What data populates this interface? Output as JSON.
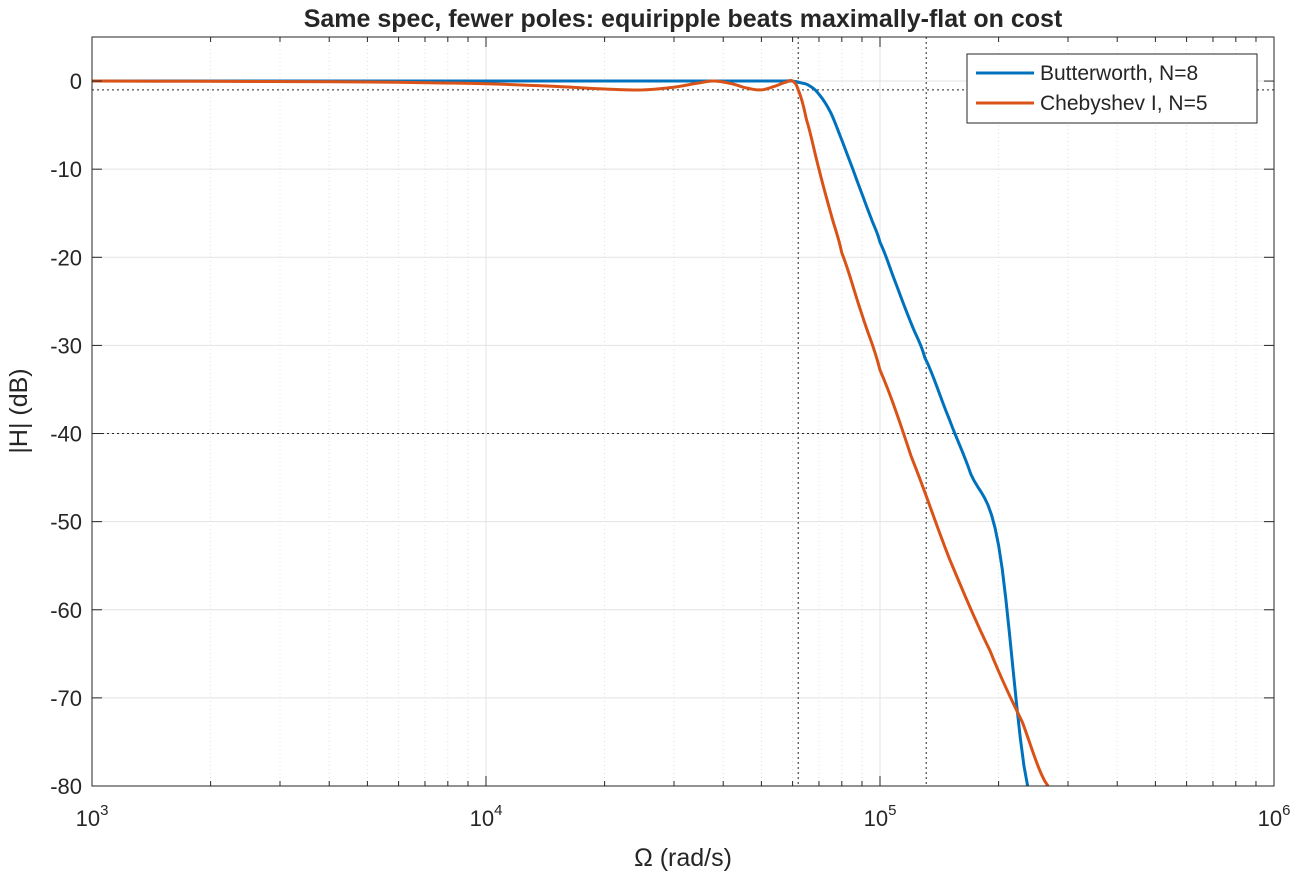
{
  "chart_data": {
    "type": "line",
    "title": "Same spec, fewer poles: equiripple beats maximally-flat on cost",
    "xlabel": "Ω  (rad/s)",
    "ylabel": "|H| (dB)",
    "xscale": "log",
    "xlim": [
      1000,
      1000000
    ],
    "ylim": [
      -80,
      5
    ],
    "x_ticks": [
      {
        "base": "10",
        "exp": "3",
        "value": 1000
      },
      {
        "base": "10",
        "exp": "4",
        "value": 10000
      },
      {
        "base": "10",
        "exp": "5",
        "value": 100000
      },
      {
        "base": "10",
        "exp": "6",
        "value": 1000000
      }
    ],
    "y_ticks": [
      "0",
      "-10",
      "-20",
      "-30",
      "-40",
      "-50",
      "-60",
      "-70",
      "-80"
    ],
    "y_tick_values": [
      0,
      -10,
      -20,
      -30,
      -40,
      -50,
      -60,
      -70,
      -80
    ],
    "grid": true,
    "minor_grid": true,
    "legend_position": "top-right",
    "reference_lines": {
      "passband_edge_rad_s": 62000,
      "stopband_edge_rad_s": 131000,
      "passband_ripple_db": -1,
      "stopband_attenuation_db": -40
    },
    "series": [
      {
        "name": "Butterworth, N=8",
        "color": "#0072BD",
        "x": [
          1000,
          10000,
          30000,
          45000,
          55000,
          60000,
          63000,
          66000,
          70000,
          75000,
          80000,
          85000,
          90000,
          95000,
          100000,
          110000,
          120000,
          130000,
          150000,
          170000,
          200000,
          237000
        ],
        "y": [
          0,
          0,
          0,
          0,
          0,
          0,
          -0.2,
          -0.5,
          -1.5,
          -3.6,
          -6.7,
          -9.8,
          -12.8,
          -15.6,
          -18.3,
          -23.1,
          -27.5,
          -31.4,
          -38.4,
          -44.6,
          -52.7,
          -80
        ]
      },
      {
        "name": "Chebyshev I, N=5",
        "color": "#D95319",
        "x": [
          1000,
          5000,
          10000,
          15000,
          20000,
          25000,
          30000,
          35000,
          38000,
          42000,
          46000,
          50000,
          54000,
          58000,
          60000,
          62000,
          65000,
          70000,
          75000,
          80000,
          90000,
          100000,
          120000,
          150000,
          190000,
          230000,
          267000
        ],
        "y": [
          0,
          -0.1,
          -0.3,
          -0.6,
          -0.9,
          -1.0,
          -0.7,
          -0.2,
          0,
          -0.3,
          -0.8,
          -1.0,
          -0.6,
          -0.1,
          0,
          -1.0,
          -4.3,
          -10,
          -15,
          -19.5,
          -26.5,
          -32.8,
          -42.6,
          -54.2,
          -64.6,
          -72.8,
          -80
        ]
      }
    ]
  }
}
